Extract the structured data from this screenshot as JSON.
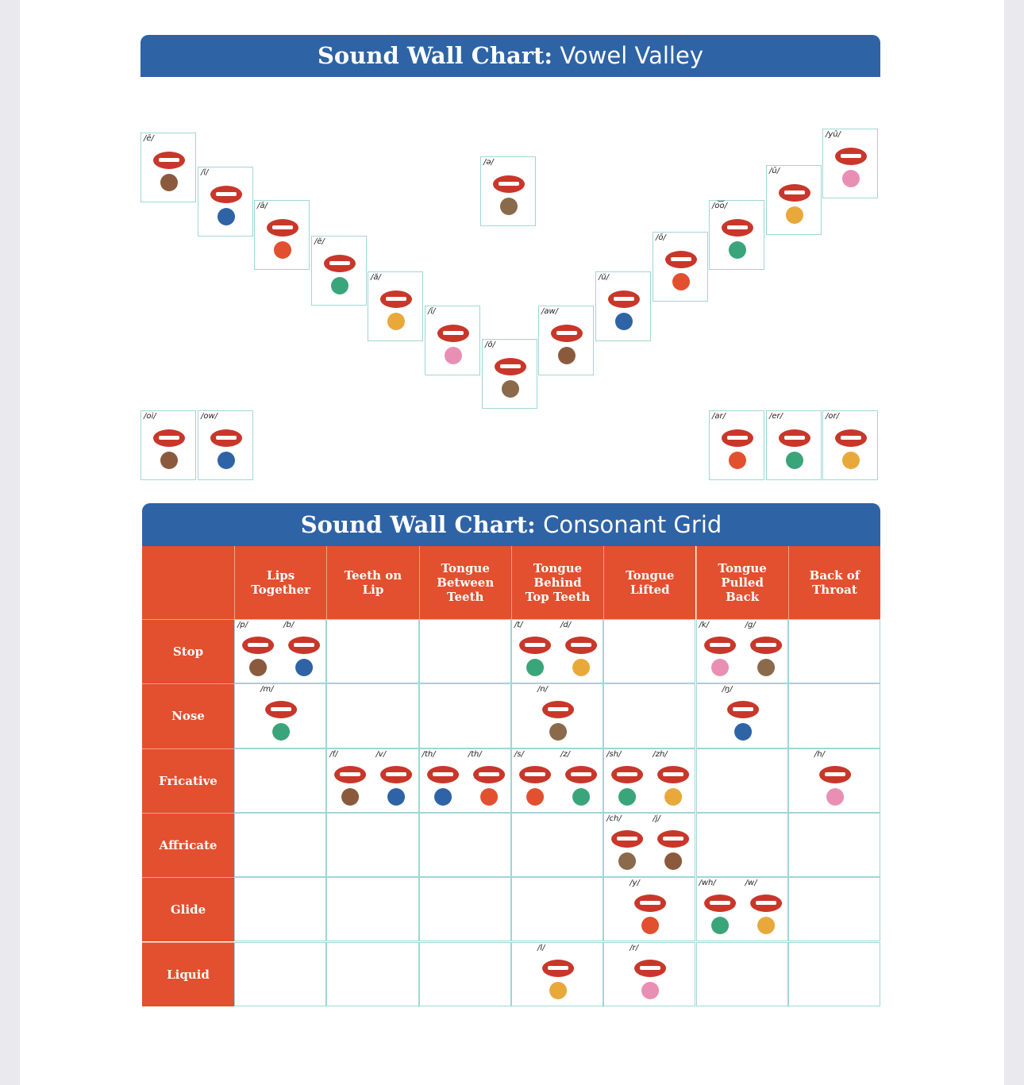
{
  "vowel_valley": {
    "title_bold": "Sound Wall Chart:",
    "title_rest": "Vowel Valley",
    "cards": [
      "/ē/",
      "/ĭ/",
      "/ā/",
      "/ĕ/",
      "/ă/",
      "/ī/",
      "/ŏ/",
      "/aw/",
      "/ŭ/",
      "/ō/",
      "/o͝o/",
      "/ū/",
      "/yū/",
      "/ə/",
      "/oi/",
      "/ow/",
      "/ar/",
      "/er/",
      "/or/"
    ]
  },
  "consonant_grid": {
    "title_bold": "Sound Wall Chart:",
    "title_rest": "Consonant Grid",
    "columns": [
      "Lips Together",
      "Teeth on Lip",
      "Tongue Between Teeth",
      "Tongue Behind Top Teeth",
      "Tongue Lifted",
      "Tongue Pulled Back",
      "Back of Throat"
    ],
    "rows": [
      {
        "label": "Stop",
        "cells": [
          [
            "/p/",
            "/b/"
          ],
          [],
          [],
          [
            "/t/",
            "/d/"
          ],
          [],
          [
            "/k/",
            "/g/"
          ],
          []
        ]
      },
      {
        "label": "Nose",
        "cells": [
          [
            "/m/"
          ],
          [],
          [],
          [
            "/n/"
          ],
          [],
          [
            "/ŋ/"
          ],
          []
        ]
      },
      {
        "label": "Fricative",
        "cells": [
          [],
          [
            "/f/",
            "/v/"
          ],
          [
            "/th/",
            "/th/"
          ],
          [
            "/s/",
            "/z/"
          ],
          [
            "/sh/",
            "/zh/"
          ],
          [],
          [
            "/h/"
          ]
        ]
      },
      {
        "label": "Affricate",
        "cells": [
          [],
          [],
          [],
          [],
          [
            "/ch/",
            "/j/"
          ],
          [],
          []
        ]
      },
      {
        "label": "Glide",
        "cells": [
          [],
          [],
          [],
          [],
          [
            "/y/"
          ],
          [
            "/wh/",
            "/w/"
          ],
          []
        ]
      },
      {
        "label": "Liquid",
        "cells": [
          [],
          [],
          [],
          [
            "/l/"
          ],
          [
            "/r/"
          ],
          [],
          []
        ]
      }
    ]
  }
}
